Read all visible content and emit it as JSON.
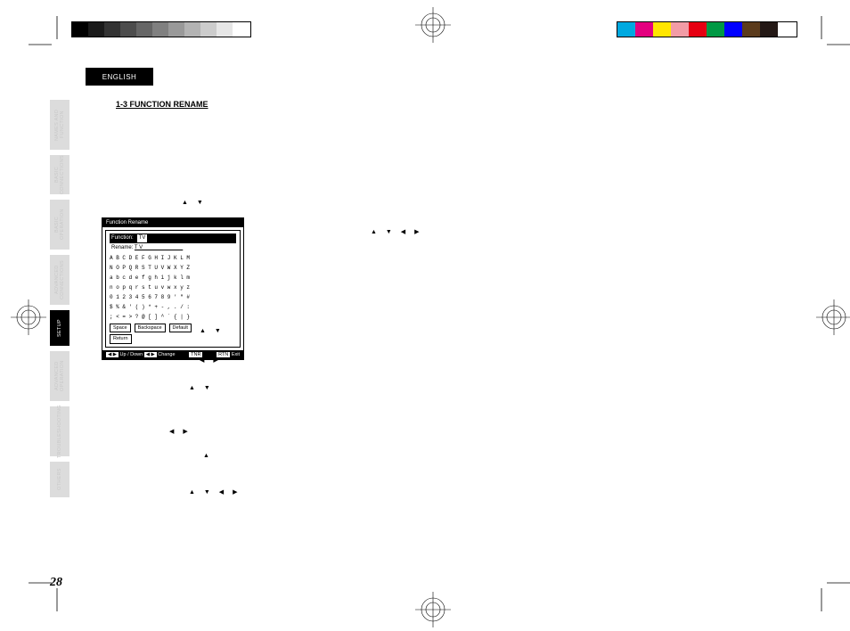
{
  "page": {
    "number": "28",
    "language_tab": "ENGLISH",
    "section_title": "1-3  FUNCTION RENAME"
  },
  "side_tabs": [
    {
      "label": "NAMES AND FUNCTION",
      "active": false,
      "h": "h1"
    },
    {
      "label": "BASIC CONNECTIONS",
      "active": false,
      "h": "h2"
    },
    {
      "label": "BASIC OPERATION",
      "active": false,
      "h": "h1"
    },
    {
      "label": "ADVANCED CONNECTIONS",
      "active": false,
      "h": "h1"
    },
    {
      "label": "SETUP",
      "active": true,
      "h": "h3"
    },
    {
      "label": "ADVANCED OPERATION",
      "active": false,
      "h": "h1"
    },
    {
      "label": "TROUBLESHOOTING",
      "active": false,
      "h": "h1"
    },
    {
      "label": "OTHERS",
      "active": false,
      "h": "h3"
    }
  ],
  "osd": {
    "title": "Function Rename",
    "function_label": "Function:",
    "function_value": "TV",
    "rename_label": "Rename:",
    "rename_value": "T V _ _ _ _ _ _ _ _ _",
    "rows": [
      "A B C D E F G H I J K L M",
      "N O P Q R S T U V W X Y Z",
      "a b c d e f g h i j k l m",
      "n o p q r s t u v w x y z",
      "0 1 2 3 4 5 6 7 8 9 ' \" #",
      "$ % & ' ( ) * + - , . / :",
      "; < = > ? @ [ ] ^ ` { | }"
    ],
    "buttons": [
      "Space",
      "Backspace",
      "Default"
    ],
    "return": "Return",
    "footer_left_a": "◀ ▶",
    "footer_left_b": "Up / Down",
    "footer_left_c": "◀ ▶",
    "footer_left_d": "Change",
    "footer_mid": "TNR",
    "footer_right_a": "RTN",
    "footer_right_b": "Exit"
  },
  "triangles": {
    "t1": "▲  ▼",
    "t2": "▲ ▼ ◀  ▶",
    "t3": "▲  ▼",
    "t4": "◀  ▶",
    "t5": "▲  ▼",
    "t6": "◀ ▶",
    "t7": "▲",
    "t8": "▲ ▼ ◀   ▶"
  },
  "colorbars": {
    "gray_steps": [
      "#000000",
      "#1a1a1a",
      "#333333",
      "#4d4d4d",
      "#666666",
      "#808080",
      "#999999",
      "#b3b3b3",
      "#cccccc",
      "#e6e6e6",
      "#ffffff"
    ],
    "colors": [
      "#00a9e0",
      "#e4007f",
      "#ffe600",
      "#f29ca6",
      "#e60012",
      "#009944",
      "#0000ff",
      "#5b3b1c",
      "#231815",
      "#ffffff"
    ]
  },
  "registration": {
    "crop_len": 26,
    "target_r_outer": 13,
    "target_r_inner": 8
  }
}
